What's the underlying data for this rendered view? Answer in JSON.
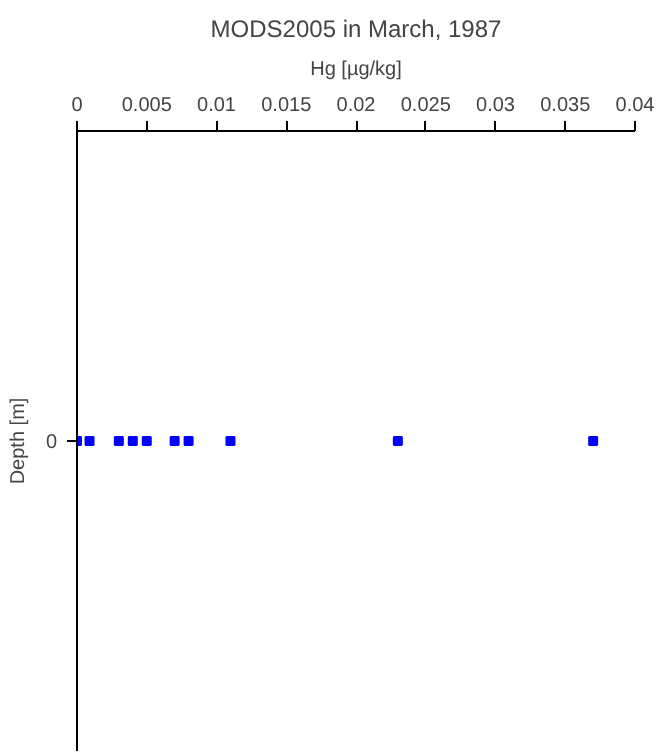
{
  "chart_data": {
    "type": "scatter",
    "orientation": "horizontal",
    "title": "MODS2005 in March, 1987",
    "xlabel": "Hg [µg/kg]",
    "ylabel": "Depth [m]",
    "categories": [
      "0"
    ],
    "series": [
      {
        "color": "#0000ff",
        "values": [
          0
        ]
      },
      {
        "color": "#0000ff",
        "values": [
          0.0009
        ]
      },
      {
        "color": "#0000ff",
        "values": [
          0.003
        ]
      },
      {
        "color": "#0000ff",
        "values": [
          0.004
        ]
      },
      {
        "color": "#0000ff",
        "values": [
          0.005
        ]
      },
      {
        "color": "#0000ff",
        "values": [
          0.007
        ]
      },
      {
        "color": "#0000ff",
        "values": [
          0.008
        ]
      },
      {
        "color": "#0000ff",
        "values": [
          0.011
        ]
      },
      {
        "color": "#0000ff",
        "values": [
          0.023
        ]
      },
      {
        "color": "#0000ff",
        "values": [
          0.037
        ]
      }
    ],
    "xlim": [
      0,
      0.04
    ],
    "xticks": [
      0,
      0.005,
      0.01,
      0.015,
      0.02,
      0.025,
      0.03,
      0.035,
      0.04
    ],
    "marker": "square"
  }
}
